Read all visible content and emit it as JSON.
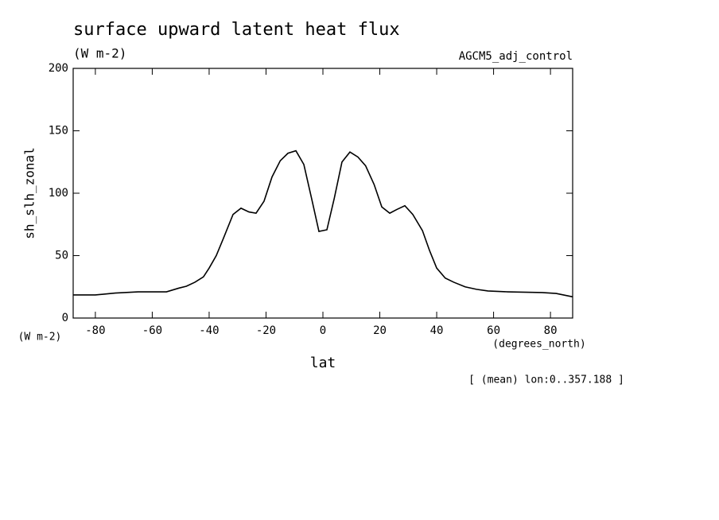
{
  "chart_data": {
    "type": "line",
    "title": "surface upward latent heat flux",
    "subtitle": "(W m-2)",
    "dataset": "AGCM5_adj_control",
    "y_label": "sh_slh_zonal",
    "y_units": "(W m-2)",
    "x_label": "lat",
    "x_units": "(degrees_north)",
    "annotation": "[ (mean) lon:0..357.188 ]",
    "x": [
      -87.8,
      -80,
      -73,
      -65,
      -55,
      -50.6,
      -48,
      -45,
      -42,
      -40,
      -37.5,
      -35,
      -31.6,
      -28.8,
      -26,
      -23.5,
      -20.7,
      -17.9,
      -15,
      -12.3,
      -9.5,
      -6.7,
      -4,
      -1.4,
      1.4,
      4,
      6.7,
      9.5,
      12.3,
      15,
      18,
      20.7,
      23.5,
      26,
      28.8,
      31.6,
      35,
      37.5,
      40,
      43,
      46,
      50,
      54,
      58,
      65,
      77,
      82,
      87.8
    ],
    "series": [
      {
        "name": "sh_slh_zonal",
        "color": "#000000",
        "values": [
          18.5,
          18.5,
          20,
          21,
          21,
          24,
          25.5,
          28.7,
          33,
          40,
          50,
          63.7,
          83,
          88,
          85,
          84,
          93.6,
          113,
          126,
          132,
          134,
          123,
          96,
          69.4,
          70.7,
          96,
          125,
          133,
          129,
          122,
          107,
          89,
          84,
          87,
          90,
          83,
          70,
          54,
          40,
          32,
          28.7,
          25,
          23,
          21.7,
          21,
          20.4,
          19.7,
          17
        ]
      }
    ],
    "xlim": [
      -87.8,
      87.8
    ],
    "ylim": [
      0,
      200
    ],
    "xticks": [
      -80,
      -60,
      -40,
      -20,
      0,
      20,
      40,
      60,
      80
    ],
    "yticks": [
      0,
      50,
      100,
      150,
      200
    ],
    "grid": false
  }
}
